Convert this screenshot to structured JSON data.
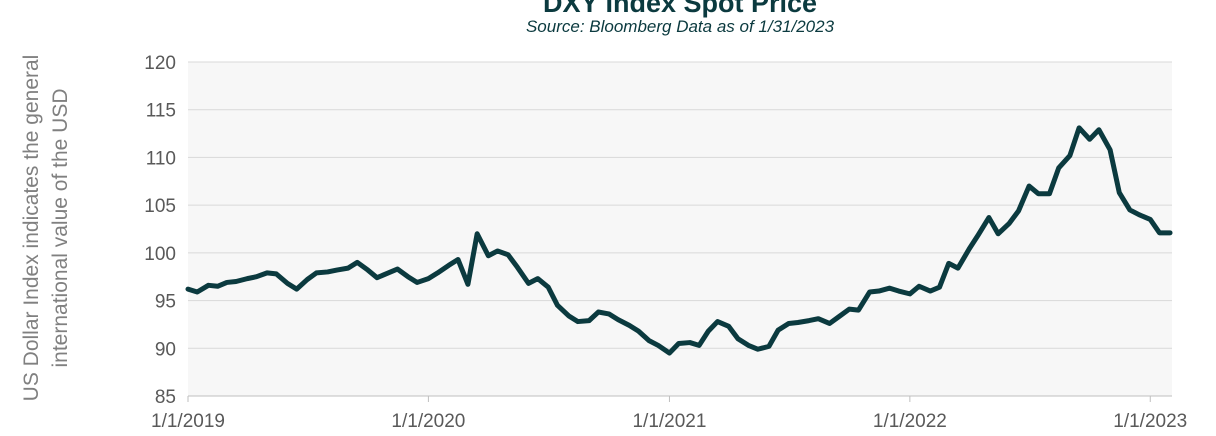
{
  "chart_data": {
    "type": "line",
    "title": "DXY Index Spot Price",
    "subtitle": "Source: Bloomberg Data as of 1/31/2023",
    "y_label": "US Dollar Index indicates the general international value of the USD",
    "xlim": [
      "1/1/2019",
      "2/3/2023"
    ],
    "xticks": [
      "1/1/2019",
      "1/1/2020",
      "1/1/2021",
      "1/1/2022",
      "1/1/2023"
    ],
    "ylim": [
      85,
      120
    ],
    "yticks": [
      85,
      90,
      95,
      100,
      105,
      110,
      115,
      120
    ],
    "grid": true,
    "x": [
      "1/1/2019",
      "1/15/2019",
      "2/1/2019",
      "2/15/2019",
      "3/1/2019",
      "3/15/2019",
      "4/1/2019",
      "4/15/2019",
      "5/1/2019",
      "5/15/2019",
      "6/1/2019",
      "6/15/2019",
      "7/1/2019",
      "7/15/2019",
      "8/1/2019",
      "8/15/2019",
      "9/1/2019",
      "9/15/2019",
      "10/1/2019",
      "10/15/2019",
      "11/1/2019",
      "11/15/2019",
      "12/1/2019",
      "12/15/2019",
      "1/1/2020",
      "1/15/2020",
      "2/1/2020",
      "2/15/2020",
      "3/1/2020",
      "3/15/2020",
      "4/1/2020",
      "4/15/2020",
      "5/1/2020",
      "5/15/2020",
      "6/1/2020",
      "6/15/2020",
      "7/1/2020",
      "7/15/2020",
      "8/1/2020",
      "8/15/2020",
      "9/1/2020",
      "9/15/2020",
      "10/1/2020",
      "10/15/2020",
      "11/1/2020",
      "11/15/2020",
      "12/1/2020",
      "12/15/2020",
      "1/1/2021",
      "1/15/2021",
      "2/1/2021",
      "2/15/2021",
      "3/1/2021",
      "3/15/2021",
      "4/1/2021",
      "4/15/2021",
      "5/1/2021",
      "5/15/2021",
      "6/1/2021",
      "6/15/2021",
      "7/1/2021",
      "7/15/2021",
      "8/1/2021",
      "8/15/2021",
      "9/1/2021",
      "9/15/2021",
      "10/1/2021",
      "10/15/2021",
      "11/1/2021",
      "11/15/2021",
      "12/1/2021",
      "12/15/2021",
      "1/1/2022",
      "1/15/2022",
      "2/1/2022",
      "2/15/2022",
      "3/1/2022",
      "3/15/2022",
      "4/1/2022",
      "4/15/2022",
      "5/1/2022",
      "5/15/2022",
      "6/1/2022",
      "6/15/2022",
      "7/1/2022",
      "7/15/2022",
      "8/1/2022",
      "8/15/2022",
      "9/1/2022",
      "9/15/2022",
      "10/1/2022",
      "10/15/2022",
      "11/1/2022",
      "11/15/2022",
      "12/1/2022",
      "12/15/2022",
      "1/1/2023",
      "1/15/2023",
      "1/31/2023"
    ],
    "series": [
      {
        "name": "DXY",
        "color": "#0b3a3f",
        "values": [
          96.2,
          95.9,
          96.6,
          96.5,
          96.9,
          97.0,
          97.3,
          97.5,
          97.9,
          97.8,
          96.8,
          96.2,
          97.2,
          97.9,
          98.0,
          98.2,
          98.4,
          99.0,
          98.2,
          97.4,
          97.9,
          98.3,
          97.5,
          96.9,
          97.3,
          97.9,
          98.7,
          99.3,
          96.7,
          102.0,
          99.7,
          100.2,
          99.8,
          98.5,
          96.8,
          97.3,
          96.4,
          94.5,
          93.4,
          92.8,
          92.9,
          93.8,
          93.6,
          93.0,
          92.4,
          91.8,
          90.8,
          90.3,
          89.5,
          90.5,
          90.6,
          90.3,
          91.8,
          92.8,
          92.3,
          91.0,
          90.3,
          89.9,
          90.2,
          91.9,
          92.6,
          92.7,
          92.9,
          93.1,
          92.6,
          93.3,
          94.1,
          94.0,
          95.9,
          96.0,
          96.3,
          96.0,
          95.7,
          96.5,
          96.0,
          96.4,
          98.9,
          98.4,
          100.4,
          101.9,
          103.7,
          102.0,
          103.1,
          104.4,
          107.0,
          106.2,
          106.2,
          108.9,
          110.2,
          113.1,
          111.9,
          112.9,
          110.8,
          106.3,
          104.5,
          104.0,
          103.5,
          102.1,
          102.1
        ]
      }
    ]
  }
}
